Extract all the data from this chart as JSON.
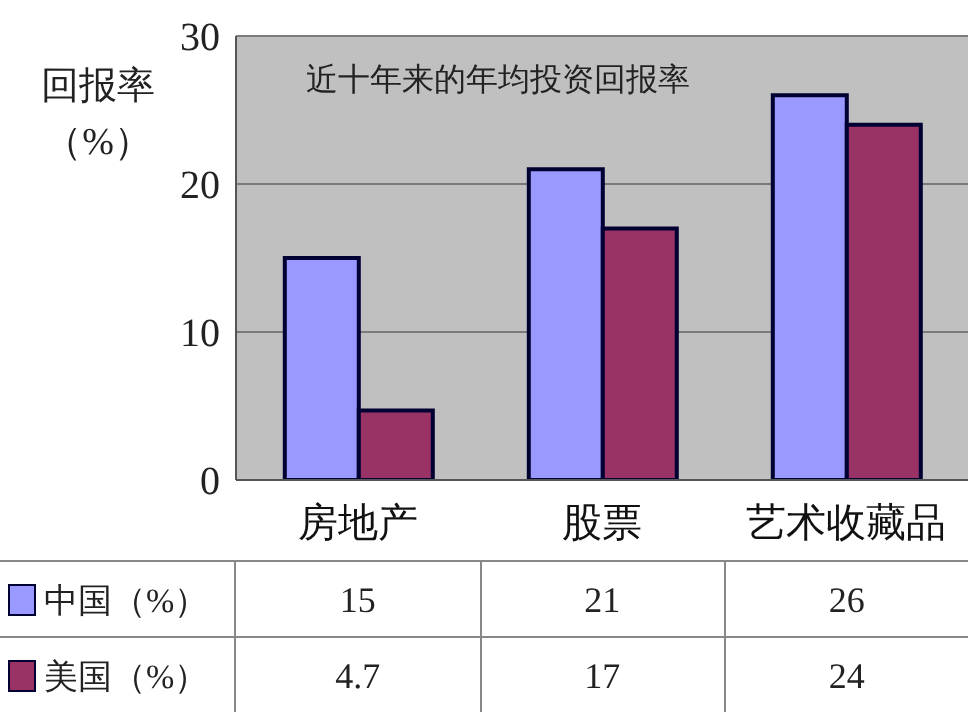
{
  "chart_data": {
    "type": "bar",
    "title": "近十年来的年均投资回报率",
    "ylabel": "回报率（%）",
    "categories": [
      "房地产",
      "股票",
      "艺术收藏品"
    ],
    "series": [
      {
        "name": "中国（%）",
        "color": "#9999ff",
        "values": [
          15,
          21,
          26
        ]
      },
      {
        "name": "美国（%）",
        "color": "#993366",
        "values": [
          4.7,
          17,
          24
        ]
      }
    ],
    "ylim": [
      0,
      30
    ],
    "yticks": [
      0,
      10,
      20,
      30
    ],
    "grid": "y",
    "legend": "bottom left",
    "data_labels": true
  }
}
